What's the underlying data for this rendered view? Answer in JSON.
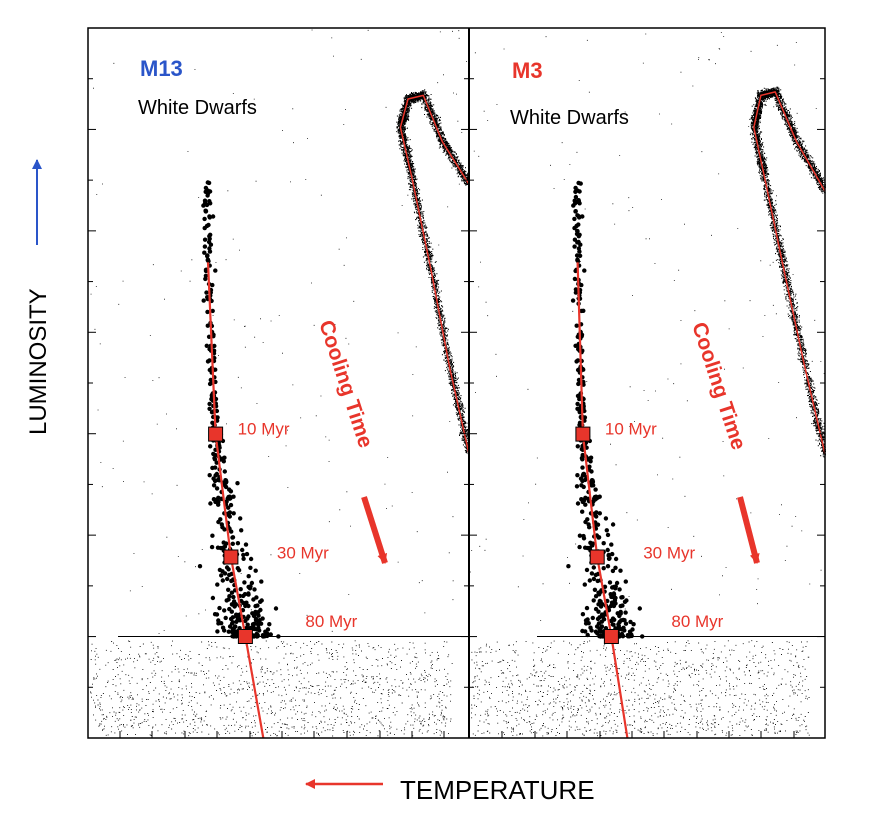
{
  "axes": {
    "y_label": "LUMINOSITY",
    "x_label": "TEMPERATURE"
  },
  "colors": {
    "accent_red": "#e8352b",
    "accent_blue": "#2a55c9",
    "points": "#000000"
  },
  "chart_data": [
    {
      "type": "scatter",
      "cluster": "M13",
      "cluster_color": "#2a55c9",
      "subtitle": "White Dwarfs",
      "annotation": "Cooling Time",
      "markers": [
        {
          "label": "10 Myr",
          "x": 0.335,
          "y": 0.428
        },
        {
          "label": "30 Myr",
          "x": 0.375,
          "y": 0.255
        },
        {
          "label": "80 Myr",
          "x": 0.413,
          "y": 0.143
        }
      ],
      "cooling_track": [
        [
          0.315,
          0.67
        ],
        [
          0.335,
          0.428
        ],
        [
          0.375,
          0.255
        ],
        [
          0.413,
          0.143
        ],
        [
          0.46,
          0.0
        ]
      ],
      "giant_branch_track": [
        [
          1.0,
          0.4
        ],
        [
          0.95,
          0.52
        ],
        [
          0.9,
          0.66
        ],
        [
          0.85,
          0.79
        ],
        [
          0.82,
          0.86
        ],
        [
          0.84,
          0.9
        ],
        [
          0.88,
          0.905
        ],
        [
          0.93,
          0.84
        ],
        [
          1.0,
          0.78
        ]
      ],
      "completeness_limit_y": 0.143
    },
    {
      "type": "scatter",
      "cluster": "M3",
      "cluster_color": "#e8352b",
      "subtitle": "White Dwarfs",
      "annotation": "Cooling Time",
      "markers": [
        {
          "label": "10 Myr",
          "x": 0.32,
          "y": 0.428
        },
        {
          "label": "30 Myr",
          "x": 0.36,
          "y": 0.255
        },
        {
          "label": "80 Myr",
          "x": 0.4,
          "y": 0.143
        }
      ],
      "cooling_track": [
        [
          0.305,
          0.67
        ],
        [
          0.32,
          0.428
        ],
        [
          0.36,
          0.255
        ],
        [
          0.4,
          0.143
        ],
        [
          0.445,
          0.0
        ]
      ],
      "giant_branch_track": [
        [
          1.0,
          0.4
        ],
        [
          0.94,
          0.53
        ],
        [
          0.88,
          0.67
        ],
        [
          0.83,
          0.79
        ],
        [
          0.8,
          0.86
        ],
        [
          0.82,
          0.905
        ],
        [
          0.86,
          0.91
        ],
        [
          0.92,
          0.84
        ],
        [
          1.0,
          0.77
        ]
      ],
      "completeness_limit_y": 0.143
    }
  ]
}
